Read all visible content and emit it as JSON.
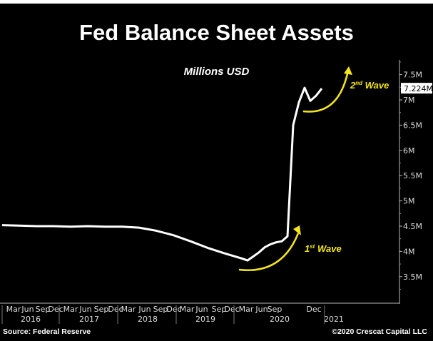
{
  "chart_data": {
    "type": "line",
    "title": "Fed Balance Sheet Assets",
    "subtitle": "Millions USD",
    "ylim": [
      3.2,
      7.9
    ],
    "yticks": [
      "3.5M",
      "4M",
      "4.5M",
      "5M",
      "5.5M",
      "6M",
      "6.5M",
      "7M",
      "7.5M"
    ],
    "ytick_values": [
      3.5,
      4,
      4.5,
      5,
      5.5,
      6,
      6.5,
      7,
      7.5
    ],
    "last_value_label": "7.224M",
    "month_ticks": [
      "Mar",
      "Jun",
      "Sep",
      "Dec",
      "Mar",
      "Jun",
      "Sep",
      "Dec",
      "Mar",
      "Jun",
      "Sep",
      "Dec",
      "Mar",
      "Jun",
      "Sep",
      "Dec",
      "Mar",
      "Jun",
      "Sep",
      "Dec"
    ],
    "year_ticks": [
      "2016",
      "2017",
      "2018",
      "2019",
      "2020",
      "2021"
    ],
    "grid": false,
    "line_color": "#ffffff",
    "annotation_color": "#f5e61a",
    "annotations": [
      {
        "text": "1",
        "sup": "st",
        "rest": " Wave"
      },
      {
        "text": "2",
        "sup": "nd",
        "rest": " Wave"
      }
    ],
    "series": [
      {
        "x": [
          "2016-01",
          "2016-04",
          "2016-07",
          "2016-10",
          "2017-01",
          "2017-04",
          "2017-07",
          "2017-10",
          "2018-01",
          "2018-04",
          "2018-07",
          "2018-10",
          "2019-01",
          "2019-04",
          "2019-07",
          "2019-08",
          "2019-09",
          "2019-10",
          "2019-11",
          "2019-12",
          "2020-01",
          "2020-02",
          "2020-03",
          "2020-04",
          "2020-05",
          "2020-06",
          "2020-07",
          "2020-08",
          "2020-09"
        ],
        "values": [
          4.52,
          4.51,
          4.5,
          4.5,
          4.49,
          4.5,
          4.49,
          4.49,
          4.47,
          4.41,
          4.32,
          4.2,
          4.07,
          3.96,
          3.86,
          3.82,
          3.9,
          3.98,
          4.08,
          4.14,
          4.18,
          4.2,
          4.3,
          6.5,
          6.95,
          7.24,
          6.98,
          7.08,
          7.224
        ]
      }
    ]
  },
  "footer": {
    "source": "Source: Federal Reserve",
    "copyright": "©2020 Crescat Capital LLC"
  }
}
